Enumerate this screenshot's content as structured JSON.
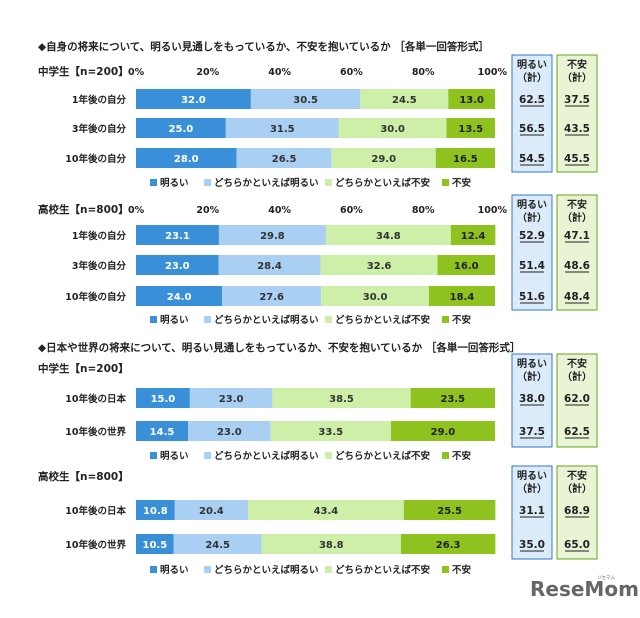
{
  "colors": {
    "akarui": "#3a8fd9",
    "dochiraka_akarui": "#a9cff2",
    "dochiraka_fuan": "#cdefa8",
    "fuan": "#8dc21f",
    "sum_akarui_bg": "#dcebf9",
    "sum_fuan_bg": "#e8f4d4"
  },
  "logo": {
    "main": "ReseMom",
    "small": "リセマム"
  },
  "summary_headers": {
    "akarui": [
      "明るい",
      "（計）"
    ],
    "fuan": [
      "不安",
      "（計）"
    ]
  },
  "legend": [
    "明るい",
    "どちらかといえば明るい",
    "どちらかといえば不安",
    "不安"
  ],
  "ticks": [
    "0%",
    "20%",
    "40%",
    "60%",
    "80%",
    "100%"
  ],
  "chart_data": [
    {
      "type": "bar",
      "stacked": true,
      "orientation": "horizontal",
      "title": "◆自身の将来について、明るい見通しをもっているか、不安を抱いているか ［各単一回答形式］",
      "group": "中学生【n=200】",
      "categories": [
        "1年後の自分",
        "3年後の自分",
        "10年後の自分"
      ],
      "series": [
        {
          "name": "明るい",
          "values": [
            32.0,
            25.0,
            28.0
          ]
        },
        {
          "name": "どちらかといえば明るい",
          "values": [
            30.5,
            31.5,
            26.5
          ]
        },
        {
          "name": "どちらかといえば不安",
          "values": [
            24.5,
            30.0,
            29.0
          ]
        },
        {
          "name": "不安",
          "values": [
            13.0,
            13.5,
            16.5
          ]
        }
      ],
      "summary_akarui": [
        "62.5",
        "56.5",
        "54.5"
      ],
      "summary_fuan": [
        "37.5",
        "43.5",
        "45.5"
      ],
      "xlim": [
        0,
        100
      ]
    },
    {
      "type": "bar",
      "stacked": true,
      "orientation": "horizontal",
      "title": "",
      "group": "高校生【n=800】",
      "categories": [
        "1年後の自分",
        "3年後の自分",
        "10年後の自分"
      ],
      "series": [
        {
          "name": "明るい",
          "values": [
            23.1,
            23.0,
            24.0
          ]
        },
        {
          "name": "どちらかといえば明るい",
          "values": [
            29.8,
            28.4,
            27.6
          ]
        },
        {
          "name": "どちらかといえば不安",
          "values": [
            34.8,
            32.6,
            30.0
          ]
        },
        {
          "name": "不安",
          "values": [
            12.4,
            16.0,
            18.4
          ]
        }
      ],
      "summary_akarui": [
        "52.9",
        "51.4",
        "51.6"
      ],
      "summary_fuan": [
        "47.1",
        "48.6",
        "48.4"
      ],
      "xlim": [
        0,
        100
      ]
    },
    {
      "type": "bar",
      "stacked": true,
      "orientation": "horizontal",
      "title": "◆日本や世界の将来について、明るい見通しをもっているか、不安を抱いているか ［各単一回答形式］",
      "group": "中学生【n=200】",
      "categories": [
        "10年後の日本",
        "10年後の世界"
      ],
      "series": [
        {
          "name": "明るい",
          "values": [
            15.0,
            14.5
          ]
        },
        {
          "name": "どちらかといえば明るい",
          "values": [
            23.0,
            23.0
          ]
        },
        {
          "name": "どちらかといえば不安",
          "values": [
            38.5,
            33.5
          ]
        },
        {
          "name": "不安",
          "values": [
            23.5,
            29.0
          ]
        }
      ],
      "summary_akarui": [
        "38.0",
        "37.5"
      ],
      "summary_fuan": [
        "62.0",
        "62.5"
      ],
      "xlim": [
        0,
        100
      ]
    },
    {
      "type": "bar",
      "stacked": true,
      "orientation": "horizontal",
      "title": "",
      "group": "高校生【n=800】",
      "categories": [
        "10年後の日本",
        "10年後の世界"
      ],
      "series": [
        {
          "name": "明るい",
          "values": [
            10.8,
            10.5
          ]
        },
        {
          "name": "どちらかといえば明るい",
          "values": [
            20.4,
            24.5
          ]
        },
        {
          "name": "どちらかといえば不安",
          "values": [
            43.4,
            38.8
          ]
        },
        {
          "name": "不安",
          "values": [
            25.5,
            26.3
          ]
        }
      ],
      "summary_akarui": [
        "31.1",
        "35.0"
      ],
      "summary_fuan": [
        "68.9",
        "65.0"
      ],
      "xlim": [
        0,
        100
      ]
    }
  ]
}
